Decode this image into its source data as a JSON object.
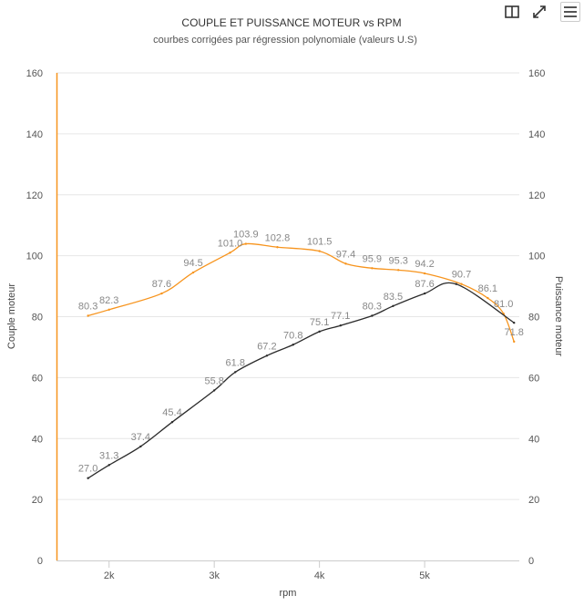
{
  "toolbar": {
    "icons": [
      "split-panel-icon",
      "expand-icon",
      "hamburger-menu-icon"
    ]
  },
  "chart_data": {
    "type": "line",
    "title": "COUPLE ET PUISSANCE MOTEUR vs RPM",
    "subtitle": "courbes corrigées par régression polynomiale (valeurs U.S)",
    "xlabel": "rpm",
    "ylabel_left": "Couple moteur",
    "ylabel_right": "Puissance moteur",
    "xlim": [
      1500,
      5900
    ],
    "ylim": [
      0,
      160
    ],
    "x_ticks": [
      {
        "value": 2000,
        "label": "2k"
      },
      {
        "value": 3000,
        "label": "3k"
      },
      {
        "value": 4000,
        "label": "4k"
      },
      {
        "value": 5000,
        "label": "5k"
      }
    ],
    "y_ticks": [
      0,
      20,
      40,
      60,
      80,
      100,
      120,
      140,
      160
    ],
    "grid": true,
    "legend": "none",
    "series": [
      {
        "axis": "left",
        "color": "#f7941d",
        "x": [
          1800,
          2000,
          2500,
          2800,
          3150,
          3300,
          3600,
          4000,
          4250,
          4500,
          4750,
          5000,
          5350,
          5600,
          5750,
          5850
        ],
        "values": [
          80.3,
          82.3,
          87.6,
          94.5,
          101.0,
          103.9,
          102.8,
          101.5,
          97.4,
          95.9,
          95.3,
          94.2,
          90.7,
          86.1,
          81.0,
          71.8
        ],
        "labels": [
          "80.3",
          "82.3",
          "87.6",
          "94.5",
          "101.0",
          "103.9",
          "102.8",
          "101.5",
          "97.4",
          "95.9",
          "95.3",
          "94.2",
          "90.7",
          "86.1",
          "81.0",
          "71.8"
        ]
      },
      {
        "axis": "right",
        "color": "#2b2b2b",
        "x": [
          1800,
          2000,
          2300,
          2600,
          3000,
          3200,
          3500,
          3750,
          4000,
          4200,
          4500,
          4700,
          5000,
          5300,
          5850
        ],
        "values": [
          27.0,
          31.3,
          37.4,
          45.4,
          55.8,
          61.8,
          67.2,
          70.8,
          75.1,
          77.1,
          80.3,
          83.5,
          87.6,
          90.7,
          78.0
        ],
        "labels": [
          "27.0",
          "31.3",
          "37.4",
          "45.4",
          "55.8",
          "61.8",
          "67.2",
          "70.8",
          "75.1",
          "77.1",
          "80.3",
          "83.5",
          "87.6",
          "",
          ""
        ]
      }
    ]
  }
}
